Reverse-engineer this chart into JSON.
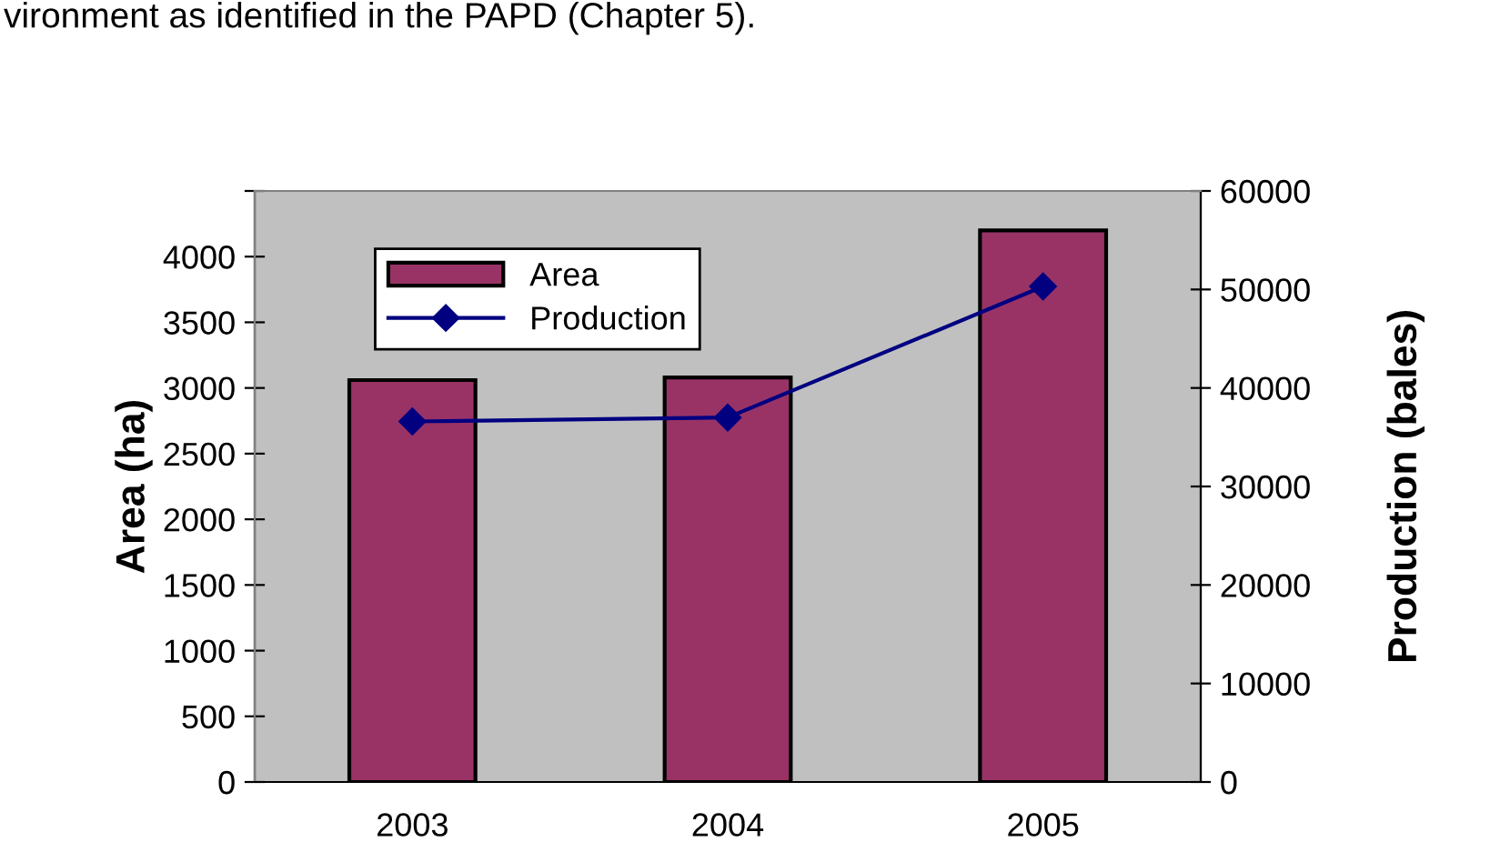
{
  "chart_data": {
    "type": "bar",
    "categories": [
      "2003",
      "2004",
      "2005"
    ],
    "series": [
      {
        "name": "Area",
        "color": "#993366",
        "values": [
          3060,
          3080,
          4200
        ]
      },
      {
        "name": "Production",
        "type": "line",
        "axis": "y2",
        "color": "#000080",
        "values": [
          36600,
          37000,
          50300
        ],
        "marker": "diamond"
      }
    ],
    "ylabel": "Area (ha)",
    "y2label": "Production (bales)",
    "ylim": [
      0,
      4500
    ],
    "yticks": [
      0,
      500,
      1000,
      1500,
      2000,
      2500,
      3000,
      3500,
      4000,
      {
        "value": 4500,
        "label": null
      }
    ],
    "y2lim": [
      0,
      60000
    ],
    "y2ticks": [
      0,
      10000,
      20000,
      30000,
      40000,
      50000,
      60000
    ],
    "legend": "top left",
    "grid": false,
    "annotations": [
      "vironment as identified in the PAPD (Chapter 5)."
    ]
  }
}
